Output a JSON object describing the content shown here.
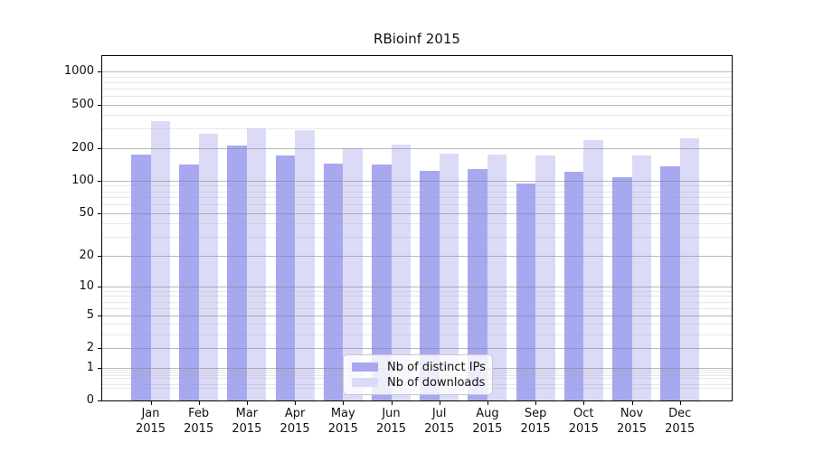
{
  "chart_data": {
    "type": "bar",
    "title": "RBioinf 2015",
    "categories": [
      "Jan",
      "Feb",
      "Mar",
      "Apr",
      "May",
      "Jun",
      "Jul",
      "Aug",
      "Sep",
      "Oct",
      "Nov",
      "Dec"
    ],
    "year": "2015",
    "series": [
      {
        "name": "Nb of distinct IPs",
        "values": [
          175,
          142,
          210,
          170,
          145,
          140,
          123,
          128,
          95,
          120,
          108,
          136
        ]
      },
      {
        "name": "Nb of downloads",
        "values": [
          350,
          270,
          305,
          290,
          197,
          213,
          176,
          174,
          172,
          238,
          170,
          245
        ]
      }
    ],
    "y_axis": {
      "scale": "log1p",
      "ticks": [
        0,
        1,
        2,
        5,
        10,
        20,
        50,
        100,
        200,
        500,
        1000
      ],
      "minor_ticks": [
        0.3,
        0.4,
        0.6,
        0.7,
        0.8,
        0.9,
        3,
        4,
        6,
        7,
        8,
        9,
        30,
        40,
        60,
        70,
        80,
        90,
        300,
        400,
        600,
        700,
        800,
        900
      ],
      "top_value": 1400
    },
    "grid": true,
    "legend_position": "bottom-center"
  },
  "colors": {
    "distinct_ips": "#a8a8f0",
    "downloads": "#dbdbf7",
    "grid_major": "rgba(128,128,128,0.55)",
    "grid_minor": "rgba(160,160,160,0.25)"
  }
}
